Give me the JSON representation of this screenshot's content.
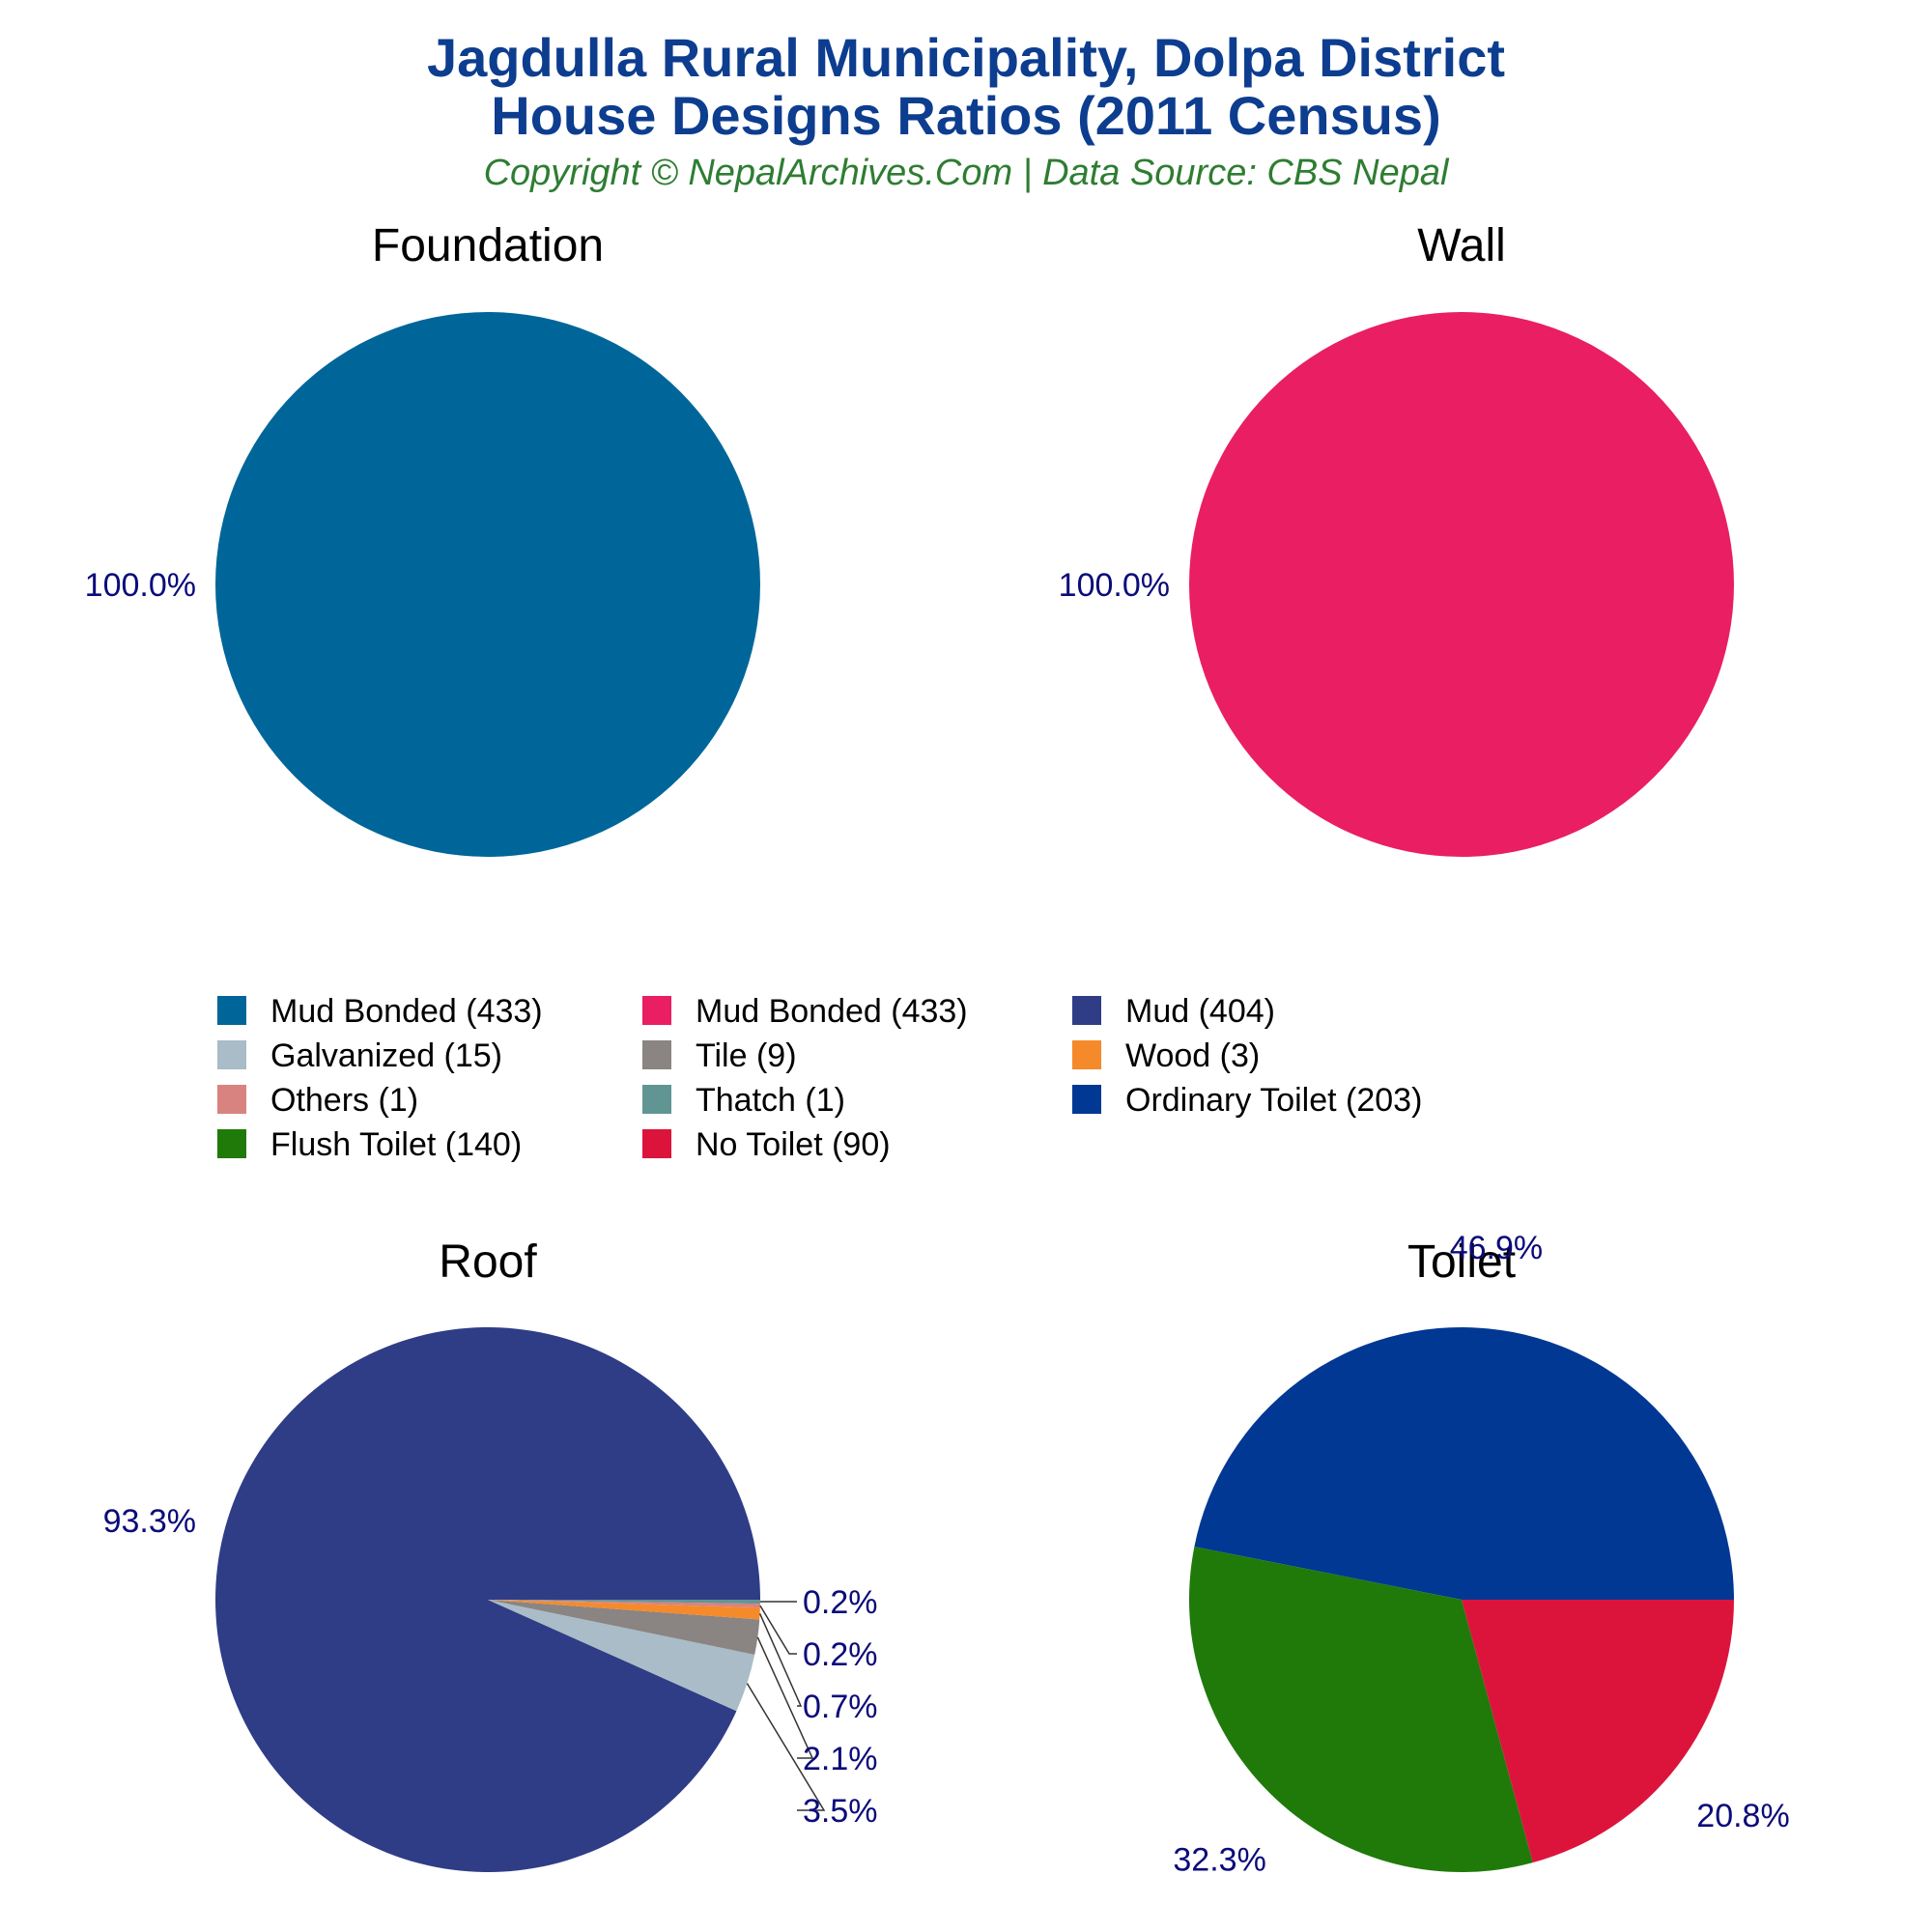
{
  "header": {
    "title_line1": "Jagdulla Rural Municipality, Dolpa District",
    "title_line2": "House Designs Ratios (2011 Census)",
    "copyright": "Copyright © NepalArchives.Com | Data Source: CBS Nepal"
  },
  "chart_data": [
    {
      "type": "pie",
      "title": "Foundation",
      "slices": [
        {
          "label": "Mud Bonded",
          "value": 433,
          "percent_label": "100.0%",
          "color": "#006699"
        }
      ]
    },
    {
      "type": "pie",
      "title": "Wall",
      "slices": [
        {
          "label": "Mud Bonded",
          "value": 433,
          "percent_label": "100.0%",
          "color": "#e91e63"
        }
      ]
    },
    {
      "type": "pie",
      "title": "Roof",
      "slices": [
        {
          "label": "Mud",
          "value": 404,
          "percent_label": "93.3%",
          "color": "#2f3d87"
        },
        {
          "label": "Galvanized",
          "value": 15,
          "percent_label": "3.5%",
          "color": "#a9bcc7"
        },
        {
          "label": "Tile",
          "value": 9,
          "percent_label": "2.1%",
          "color": "#8a8483"
        },
        {
          "label": "Wood",
          "value": 3,
          "percent_label": "0.7%",
          "color": "#f58a2a"
        },
        {
          "label": "Others",
          "value": 1,
          "percent_label": "0.2%",
          "color": "#d98381"
        },
        {
          "label": "Thatch",
          "value": 1,
          "percent_label": "0.2%",
          "color": "#619594"
        }
      ]
    },
    {
      "type": "pie",
      "title": "Toilet",
      "slices": [
        {
          "label": "Ordinary Toilet",
          "value": 203,
          "percent_label": "46.9%",
          "color": "#003893"
        },
        {
          "label": "Flush Toilet",
          "value": 140,
          "percent_label": "32.3%",
          "color": "#1f7a0a"
        },
        {
          "label": "No Toilet",
          "value": 90,
          "percent_label": "20.8%",
          "color": "#dc143c"
        }
      ]
    }
  ],
  "legend": {
    "items": [
      {
        "label": "Mud Bonded (433)",
        "color": "#006699"
      },
      {
        "label": "Mud Bonded (433)",
        "color": "#e91e63"
      },
      {
        "label": "Mud (404)",
        "color": "#2f3d87"
      },
      {
        "label": "Galvanized (15)",
        "color": "#a9bcc7"
      },
      {
        "label": "Tile (9)",
        "color": "#8a8483"
      },
      {
        "label": "Wood (3)",
        "color": "#f58a2a"
      },
      {
        "label": "Others (1)",
        "color": "#d98381"
      },
      {
        "label": "Thatch (1)",
        "color": "#619594"
      },
      {
        "label": "Ordinary Toilet (203)",
        "color": "#003893"
      },
      {
        "label": "Flush Toilet (140)",
        "color": "#1f7a0a"
      },
      {
        "label": "No Toilet (90)",
        "color": "#dc143c"
      }
    ]
  }
}
